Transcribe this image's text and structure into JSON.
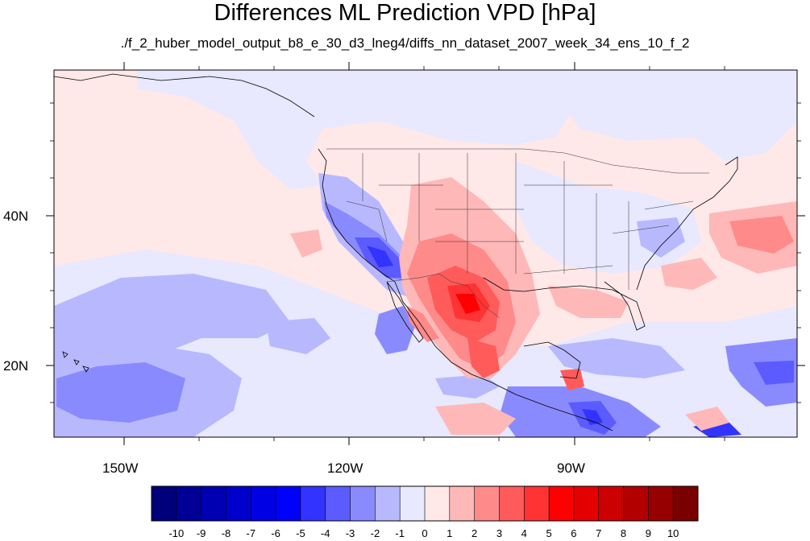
{
  "title": "Differences ML Prediction VPD [hPa]",
  "subtitle": "./f_2_huber_model_output_b8_e_30_d3_lneg4/diffs_nn_dataset_2007_week_34_ens_10_f_2",
  "map": {
    "lon_range": [
      -160,
      -62
    ],
    "lat_range": [
      10,
      59
    ],
    "lon_ticks": [
      "150W",
      "120W",
      "90W"
    ],
    "lat_ticks": [
      "40N",
      "20N"
    ],
    "background_value": 0.5
  },
  "colorbar": {
    "labels": [
      "-10",
      "-9",
      "-8",
      "-7",
      "-6",
      "-5",
      "-4",
      "-3",
      "-2",
      "-1",
      "0",
      "1",
      "2",
      "3",
      "4",
      "5",
      "6",
      "7",
      "8",
      "9",
      "10"
    ],
    "colors": [
      "#00007a",
      "#000096",
      "#0000b2",
      "#0000cc",
      "#0000e5",
      "#0000ff",
      "#3333ff",
      "#5b5bff",
      "#8a8aff",
      "#b8b8ff",
      "#e8e8ff",
      "#ffe8e8",
      "#ffb8b8",
      "#ff8a8a",
      "#ff5b5b",
      "#ff3333",
      "#ff0000",
      "#e50000",
      "#cc0000",
      "#b20000",
      "#960000",
      "#7a0000"
    ]
  }
}
